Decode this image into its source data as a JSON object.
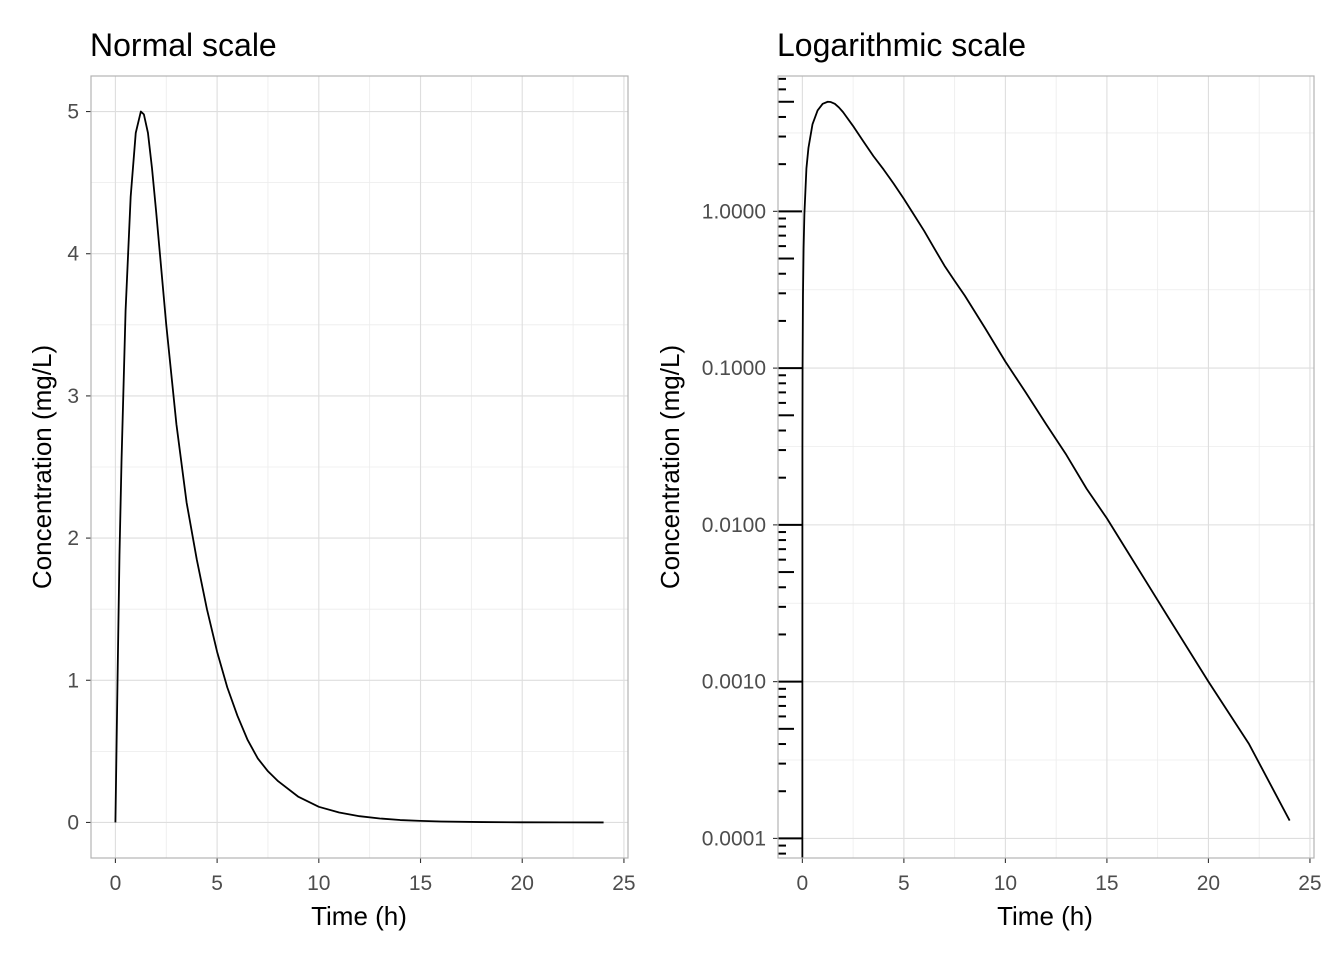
{
  "chart_data": [
    {
      "type": "line",
      "title": "Normal scale",
      "xlabel": "Time (h)",
      "ylabel": "Concentration (mg/L)",
      "xlim": [
        -1.2,
        25.2
      ],
      "ylim": [
        -0.25,
        5.25
      ],
      "xscale": "linear",
      "yscale": "linear",
      "grid": true,
      "xticks": [
        0,
        5,
        10,
        15,
        20,
        25
      ],
      "xtick_labels": [
        "0",
        "5",
        "10",
        "15",
        "20",
        "25"
      ],
      "yticks": [
        0,
        1,
        2,
        3,
        4,
        5
      ],
      "ytick_labels": [
        "0",
        "1",
        "2",
        "3",
        "4",
        "5"
      ],
      "series": [
        {
          "color": "#000000",
          "x": [
            0,
            0.1,
            0.2,
            0.3,
            0.5,
            0.75,
            1.0,
            1.25,
            1.4,
            1.6,
            1.8,
            2.0,
            2.5,
            3.0,
            3.5,
            4.0,
            4.5,
            5.0,
            5.5,
            6.0,
            6.5,
            7.0,
            7.5,
            8.0,
            9.0,
            10.0,
            11.0,
            12.0,
            13.0,
            14.0,
            15.0,
            16.0,
            18.0,
            20.0,
            22.0,
            24.0
          ],
          "y": [
            0,
            0.96,
            1.88,
            2.54,
            3.6,
            4.4,
            4.85,
            5.0,
            4.98,
            4.85,
            4.6,
            4.3,
            3.5,
            2.8,
            2.25,
            1.85,
            1.5,
            1.2,
            0.95,
            0.75,
            0.58,
            0.45,
            0.36,
            0.29,
            0.18,
            0.11,
            0.07,
            0.044,
            0.028,
            0.017,
            0.011,
            0.0068,
            0.0026,
            0.001,
            0.0004,
            0.00013
          ]
        }
      ]
    },
    {
      "type": "line",
      "title": "Logarithmic scale",
      "xlabel": "Time (h)",
      "ylabel": "Concentration (mg/L)",
      "xlim": [
        -1.2,
        25.2
      ],
      "ylim": [
        7.5e-05,
        7.3
      ],
      "xscale": "linear",
      "yscale": "log",
      "grid": true,
      "log_tick_marks": true,
      "xticks": [
        0,
        5,
        10,
        15,
        20,
        25
      ],
      "xtick_labels": [
        "0",
        "5",
        "10",
        "15",
        "20",
        "25"
      ],
      "yticks": [
        0.0001,
        0.001,
        0.01,
        0.1,
        1
      ],
      "ytick_labels": [
        "0.0001",
        "0.0010",
        "0.0100",
        "0.1000",
        "1.0000"
      ],
      "series": [
        {
          "color": "#000000",
          "x": [
            0,
            0.003,
            0.01,
            0.03,
            0.06,
            0.1,
            0.2,
            0.3,
            0.5,
            0.75,
            1.0,
            1.25,
            1.4,
            1.6,
            1.8,
            2.0,
            2.5,
            3.0,
            3.5,
            4.0,
            4.5,
            5.0,
            5.5,
            6.0,
            6.5,
            7.0,
            7.5,
            8.0,
            9.0,
            10.0,
            11.0,
            12.0,
            13.0,
            14.0,
            15.0,
            16.0,
            18.0,
            20.0,
            22.0,
            24.0
          ],
          "y": [
            1e-05,
            0.03,
            0.1,
            0.29,
            0.58,
            0.96,
            1.88,
            2.54,
            3.6,
            4.4,
            4.85,
            5.0,
            4.98,
            4.85,
            4.6,
            4.3,
            3.5,
            2.8,
            2.25,
            1.85,
            1.5,
            1.2,
            0.95,
            0.75,
            0.58,
            0.45,
            0.36,
            0.29,
            0.18,
            0.11,
            0.07,
            0.044,
            0.028,
            0.017,
            0.011,
            0.0068,
            0.0026,
            0.001,
            0.0004,
            0.00013
          ]
        }
      ]
    }
  ]
}
